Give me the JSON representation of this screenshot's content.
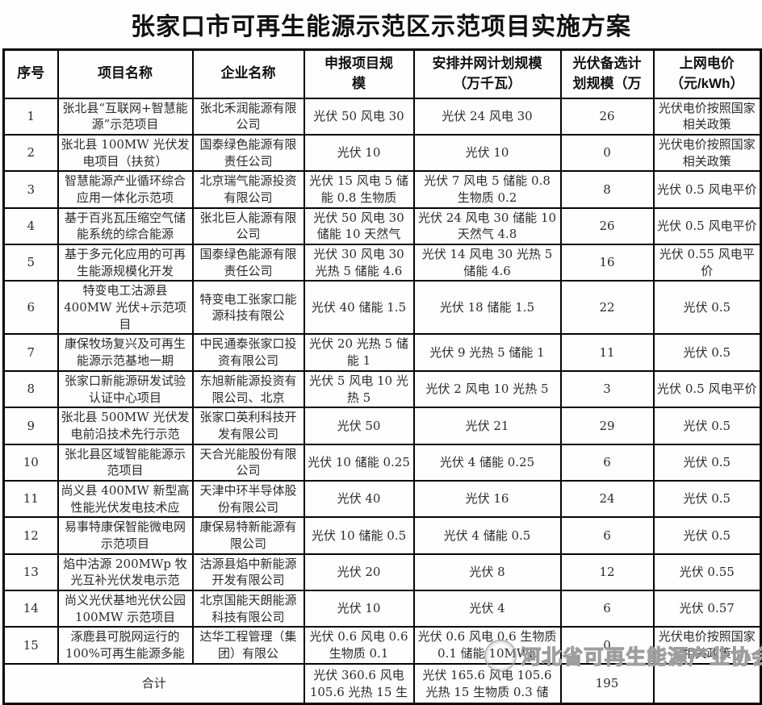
{
  "page": {
    "title": "张家口市可再生能源示范区示范项目实施方案"
  },
  "colors": {
    "background": "#fefefe",
    "border": "#050505",
    "text": "#2b2b2b",
    "watermark": "#9e9e9e"
  },
  "watermark": {
    "logo_icon": "association-circle-logo",
    "text": "河北省可再生能源产业协会"
  },
  "table": {
    "headers": {
      "no": "序号",
      "project": "项目名称",
      "company": "企业名称",
      "declared": "申报项目规\n模",
      "planned": "安排并网计划规模\n（万千瓦）",
      "pv_backup": "光伏备选计\n划规模（万",
      "price": "上网电价\n（元/kWh）"
    },
    "rows": [
      {
        "no": "1",
        "project": "张北县“互联网+智慧能源”示范项目",
        "company": "张北禾润能源有限公司",
        "declared": "光伏 50 风电 30",
        "planned": "光伏 24 风电 30",
        "pv_backup": "26",
        "price": "光伏电价按照国家相关政策"
      },
      {
        "no": "2",
        "project": "张北县 100MW 光伏发电项目（扶贫）",
        "company": "国泰绿色能源有限责任公司",
        "declared": "光伏 10",
        "planned": "光伏 10",
        "pv_backup": "0",
        "price": "光伏电价按照国家相关政策"
      },
      {
        "no": "3",
        "project": "智慧能源产业循环综合应用一体化示范项",
        "company": "北京瑞气能源投资有限公司",
        "declared": "光伏 15 风电 5 储能 0.8 生物质",
        "planned": "光伏 7 风电 5 储能 0.8 生物质 0.2",
        "pv_backup": "8",
        "price": "光伏 0.5 风电平价"
      },
      {
        "no": "4",
        "project": "基于百兆瓦压缩空气储能系统的综合能源",
        "company": "张北巨人能源有限公司",
        "declared": "光伏 50 风电 30 储能 10 天然气",
        "planned": "光伏 24 风电 30 储能 10 天然气 4.8",
        "pv_backup": "26",
        "price": "光伏 0.5 风电平价"
      },
      {
        "no": "5",
        "project": "基于多元化应用的可再生能源规模化开发",
        "company": "国泰绿色能源有限责任公司",
        "declared": "光伏 30 风电 30 光热 5 储能 4.6",
        "planned": "光伏 14 风电 30 光热 5 储能 4.6",
        "pv_backup": "16",
        "price": "光伏 0.55 风电平价"
      },
      {
        "no": "6",
        "project": "特变电工沽源县 400MW 光伏+示范项目",
        "company": "特变电工张家口能源科技有限公",
        "declared": "光伏 40 储能 1.5",
        "planned": "光伏 18 储能 1.5",
        "pv_backup": "22",
        "price": "光伏 0.5"
      },
      {
        "no": "7",
        "project": "康保牧场复兴及可再生能源示范基地一期",
        "company": "中民通泰张家口投资有限公司",
        "declared": "光伏 20 光热 5 储能 1",
        "planned": "光伏 9 光热 5 储能 1",
        "pv_backup": "11",
        "price": "光伏 0.5"
      },
      {
        "no": "8",
        "project": "张家口新能源研发试验认证中心项目",
        "company": "东旭新能源投资有限公司、北京",
        "declared": "光伏 5 风电 10 光热 5",
        "planned": "光伏 2 风电 10 光热 5",
        "pv_backup": "3",
        "price": "光伏 0.5 风电平价"
      },
      {
        "no": "9",
        "project": "张北县 500MW 光伏发电前沿技术先行示范",
        "company": "张家口英利科技开发有限公司",
        "declared": "光伏 50",
        "planned": "光伏 21",
        "pv_backup": "29",
        "price": "光伏 0.5"
      },
      {
        "no": "10",
        "project": "张北县区域智能能源示范项目",
        "company": "天合光能股份有限公司",
        "declared": "光伏 10 储能 0.25",
        "planned": "光伏 4 储能 0.25",
        "pv_backup": "6",
        "price": "光伏 0.5"
      },
      {
        "no": "11",
        "project": "尚义县 400MW 新型高性能光伏发电技术应",
        "company": "天津中环半导体股份有限公司",
        "declared": "光伏 40",
        "planned": "光伏 16",
        "pv_backup": "24",
        "price": "光伏 0.5"
      },
      {
        "no": "12",
        "project": "易事特康保智能微电网示范项目",
        "company": "康保易特新能源有限公司",
        "declared": "光伏 10 储能 0.5",
        "planned": "光伏 4 储能 0.5",
        "pv_backup": "6",
        "price": "光伏 0.5"
      },
      {
        "no": "13",
        "project": "焰中沽源 200MWp 牧光互补光伏发电示范",
        "company": "沽源县焰中新能源开发有限公司",
        "declared": "光伏 20",
        "planned": "光伏 8",
        "pv_backup": "12",
        "price": "光伏 0.55"
      },
      {
        "no": "14",
        "project": "尚义光伏基地光伏公园 100MW 示范项目",
        "company": "北京国能天朗能源科技有限公司",
        "declared": "光伏 10",
        "planned": "光伏 4",
        "pv_backup": "6",
        "price": "光伏 0.57"
      },
      {
        "no": "15",
        "project": "涿鹿县可脱网运行的 100%可再生能源多能",
        "company": "达华工程管理（集团）有限公",
        "declared": "光伏 0.6 风电 0.6 生物质 0.1",
        "planned": "光伏 0.6 风电 0.6 生物质 0.1 储能 10MWh",
        "pv_backup": "0",
        "price": "光伏电价按照国家相关政策"
      }
    ],
    "total": {
      "label": "合计",
      "declared": "光伏 360.6 风电\n105.6 光热 15 生",
      "planned": "光伏 165.6 风电 105.6\n光热 15 生物质 0.3 储",
      "pv_backup": "195",
      "price": ""
    }
  }
}
